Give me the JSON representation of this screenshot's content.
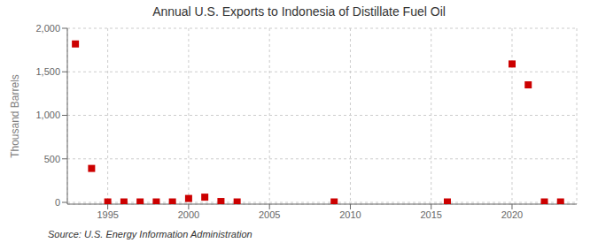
{
  "chart_data": {
    "type": "scatter",
    "title": "Annual U.S. Exports to Indonesia of Distillate Fuel Oil",
    "ylabel": "Thousand Barrels",
    "annotations": [
      "Source: U.S. Energy Information Administration"
    ],
    "x": [
      1993,
      1994,
      1995,
      1996,
      1997,
      1998,
      1999,
      2000,
      2001,
      2002,
      2003,
      2009,
      2016,
      2020,
      2021,
      2022,
      2023
    ],
    "values": [
      1820,
      390,
      5,
      5,
      5,
      5,
      5,
      45,
      60,
      10,
      5,
      5,
      5,
      1590,
      1350,
      5,
      5
    ],
    "color": "#cc0000",
    "marker": "square",
    "xlim": [
      1992.5,
      2024
    ],
    "ylim": [
      -20,
      2000
    ],
    "xticks": [
      1995,
      2000,
      2005,
      2010,
      2015,
      2020
    ],
    "yticks": [
      0,
      500,
      {
        "value": 1000,
        "label": "1,000"
      },
      {
        "value": 1500,
        "label": "1,500"
      },
      {
        "value": 2000,
        "label": "2,000"
      }
    ],
    "grid": true
  }
}
